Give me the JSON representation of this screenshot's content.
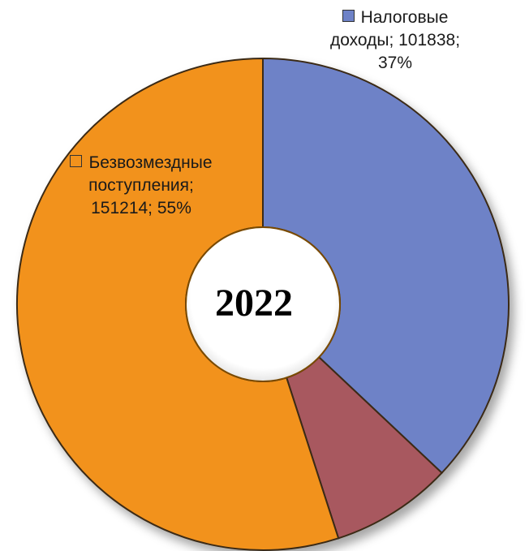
{
  "chart_data": {
    "type": "pie",
    "title": "2022",
    "series": [
      {
        "name": "Налоговые доходы",
        "value": 101838,
        "percent": 37,
        "color": "#6e82c7"
      },
      {
        "name": "",
        "value": 22018,
        "percent": 8,
        "color": "#a8585e"
      },
      {
        "name": "Безвозмездные поступления",
        "value": 151214,
        "percent": 55,
        "color": "#f2921c"
      }
    ],
    "labels": [
      {
        "lines": [
          "Налоговые",
          "доходы; 101838;",
          "37%"
        ]
      },
      {
        "lines": [
          "Безвозмездные",
          "поступления;",
          "151214; 55%"
        ]
      }
    ]
  }
}
